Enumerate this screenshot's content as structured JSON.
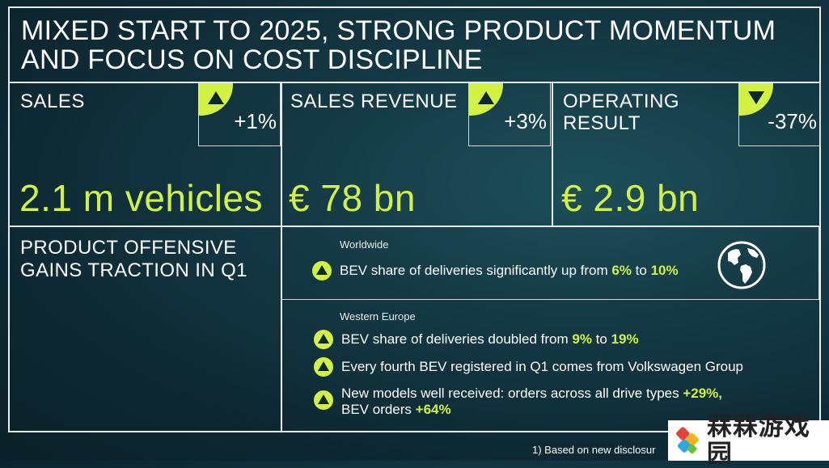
{
  "title": "MIXED START TO 2025, STRONG PRODUCT MOMENTUM\nAND FOCUS ON COST DISCIPLINE",
  "kpis": [
    {
      "label": "SALES",
      "change": "+1%",
      "direction": "up",
      "value": "2.1 m vehicles"
    },
    {
      "label": "SALES REVENUE",
      "change": "+3%",
      "direction": "up",
      "value": "€ 78 bn"
    },
    {
      "label": "OPERATING\nRESULT",
      "change": "-37%",
      "direction": "down",
      "value": "€ 2.9 bn"
    }
  ],
  "product": {
    "title": "PRODUCT OFFENSIVE\nGAINS TRACTION IN Q1",
    "worldwide": {
      "region": "Worldwide",
      "bullets": [
        {
          "pre": "BEV share of deliveries significantly up from ",
          "h1": "6%",
          "mid": " to ",
          "h2": "10%"
        }
      ]
    },
    "western_europe": {
      "region": "Western Europe",
      "b1": {
        "pre": "BEV share of deliveries doubled from ",
        "h1": "9%",
        "mid": " to ",
        "h2": "19%"
      },
      "b2": {
        "text": "Every fourth BEV registered in Q1 comes from Volkswagen Group"
      },
      "b3": {
        "line1": "New models well received: orders across all drive types ",
        "h1": "+29%,",
        "line2": "BEV orders ",
        "h2": "+64%"
      }
    }
  },
  "footnote": "1)  Based on new disclosur",
  "watermark": "槑槑游戏园",
  "colors": {
    "accent": "#d2f140",
    "background": "#143a45",
    "lines": "#e8eef0"
  },
  "icons": {
    "globe": "globe-icon",
    "up": "triangle-up-icon",
    "down": "triangle-down-icon"
  }
}
